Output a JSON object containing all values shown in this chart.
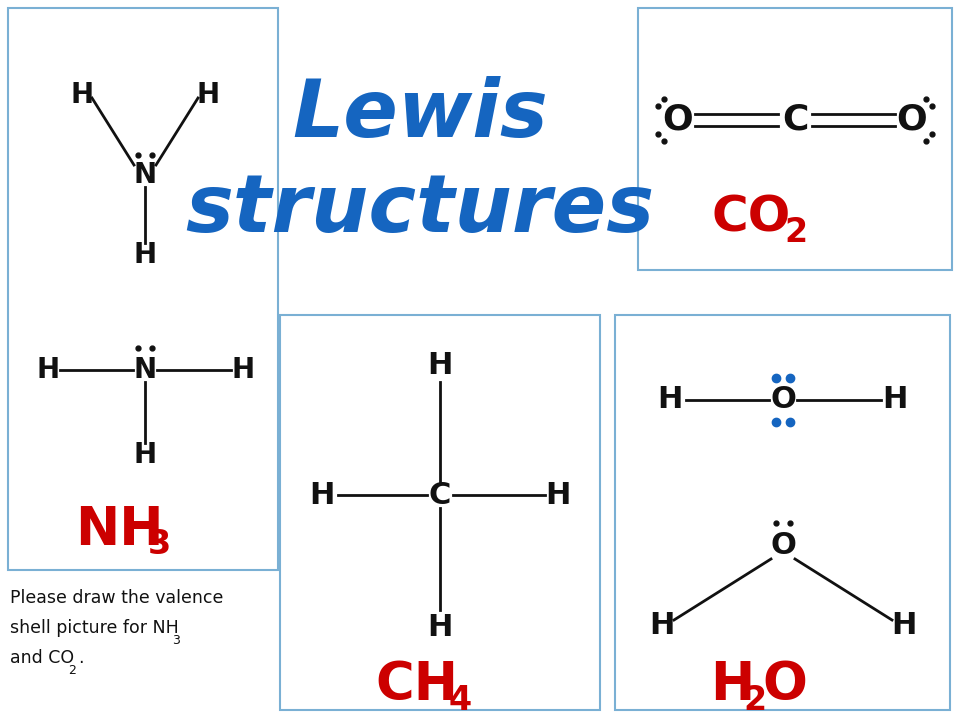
{
  "title_color": "#1565C0",
  "background_color": "#ffffff",
  "box_edge_color": "#7ab0d4",
  "label_color": "#cc0000",
  "atom_color": "#111111",
  "dot_color_blue": "#1565C0",
  "dot_color_black": "#111111",
  "title_line1": "Lewis",
  "title_line2": "structures",
  "nh3_label1": "NH",
  "nh3_label2": "3",
  "ch4_label1": "CH",
  "ch4_label2": "4",
  "h2o_label1": "H",
  "h2o_label2": "2",
  "h2o_label3": "O",
  "co2_label1": "CO",
  "co2_label2": "2",
  "footnote_line1": "Please draw the valence",
  "footnote_line2": "shell picture for NH",
  "footnote_sub1": "3",
  "footnote_line3": "and CO",
  "footnote_sub2": "2",
  "footnote_dot": "."
}
